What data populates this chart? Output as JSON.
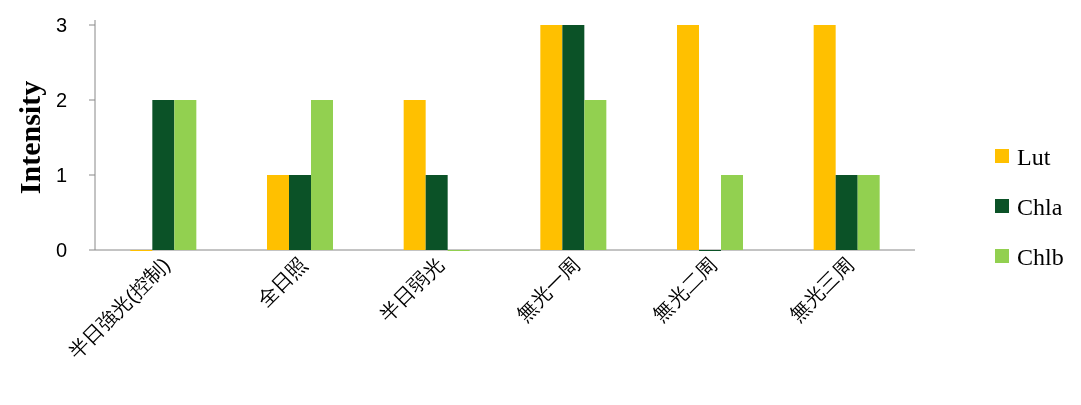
{
  "chart_data": {
    "type": "bar",
    "ylabel": "Intensity",
    "categories": [
      "半日強光(控制)",
      "全日照",
      "半日弱光",
      "無光一周",
      "無光二周",
      "無光三周"
    ],
    "series": [
      {
        "name": "Lut",
        "color": "#ffc000",
        "values": [
          0,
          1,
          2,
          3,
          3,
          3
        ]
      },
      {
        "name": "Chla",
        "color": "#0b5227",
        "values": [
          2,
          1,
          1,
          3,
          0,
          1
        ]
      },
      {
        "name": "Chlb",
        "color": "#92d050",
        "values": [
          2,
          2,
          0,
          2,
          1,
          1
        ]
      }
    ],
    "ylim": [
      0,
      3
    ],
    "yticks": [
      0,
      1,
      2,
      3
    ],
    "legend": "right"
  }
}
